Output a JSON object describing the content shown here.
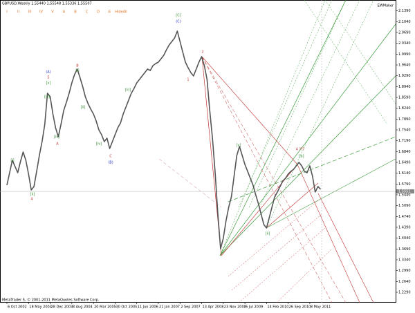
{
  "chart_data": {
    "type": "line",
    "title": "GBPUSD,Weekly  1.55440 1.55548 1.55336 1.55507",
    "brand": "EWMaker",
    "copyright": "MetaTrader 5, © 2001-2011 MetaQuotes Software Corp.",
    "toolbar": [
      "I",
      "II",
      "III",
      "IV",
      "V",
      "A",
      "B",
      "C",
      "D",
      "E",
      "HideAll"
    ],
    "categories": [
      "6 Oct 2002",
      null,
      null,
      null,
      null,
      null,
      null,
      null,
      "18 May 2003",
      null,
      null,
      null,
      null,
      null,
      null,
      null,
      "28 Dec 2003",
      null,
      null,
      null,
      null,
      null,
      null,
      null,
      "8 Aug 2004",
      null,
      null,
      null,
      null,
      null,
      null,
      null,
      "20 Mar 2005",
      null,
      null,
      null,
      null,
      null,
      null,
      null,
      "30 Oct 2005",
      null,
      null,
      null,
      null,
      null,
      null,
      null,
      "11 Jun 2006",
      null,
      null,
      null,
      null,
      null,
      null,
      null,
      "21 Jan 2007",
      null,
      null,
      null,
      null,
      null,
      null,
      null,
      "2 Sep 2007",
      null,
      null,
      null,
      null,
      null,
      null,
      null,
      "13 Apr 2008",
      null,
      null,
      null,
      null,
      null,
      null,
      null,
      "23 Nov 2008",
      null,
      null,
      null,
      null,
      null,
      null,
      null,
      "5 Jul 2009",
      null,
      null,
      null,
      null,
      null,
      null,
      null,
      "14 Feb 2010",
      null,
      null,
      null,
      null,
      null,
      null,
      null,
      "26 Sep 2010",
      null,
      null,
      null,
      null,
      null,
      null,
      null,
      "8 May 2011",
      null,
      null,
      null,
      null
    ],
    "series": [
      {
        "name": "GBPUSD",
        "color": "#555555",
        "values": [
          1.5753,
          1.6155,
          1.6557,
          1.6356,
          1.6155,
          1.6512,
          1.6825,
          1.6557,
          1.611,
          1.5597,
          1.5708,
          1.62,
          1.6714,
          1.716,
          1.7719,
          1.8724,
          1.8612,
          1.8054,
          1.7607,
          1.7317,
          1.7719,
          1.8166,
          1.8434,
          1.8724,
          1.9059,
          1.9327,
          1.9506,
          1.9238,
          1.8948,
          1.8612,
          1.8389,
          1.821,
          1.8054,
          1.7831,
          1.754,
          1.7384,
          1.716,
          1.7272,
          1.6937,
          1.716,
          1.7384,
          1.7607,
          1.7763,
          1.8054,
          1.8277,
          1.8501,
          1.8724,
          1.888,
          1.9059,
          1.9171,
          1.9283,
          1.9394,
          1.9506,
          1.9461,
          1.9618,
          1.9685,
          1.9729,
          1.9841,
          1.9953,
          2.0132,
          2.0288,
          2.04,
          2.0511,
          2.0735,
          2.04,
          2.0064,
          1.9729,
          1.9551,
          1.9394,
          1.9283,
          1.9506,
          1.9729,
          1.9908,
          1.9618,
          1.9171,
          1.8166,
          1.7272,
          1.6155,
          1.4815,
          1.3698,
          1.4033,
          1.4591,
          1.5038,
          1.5373,
          1.6043,
          1.6714,
          1.7004,
          1.6714,
          1.6423,
          1.62,
          1.5976,
          1.5753,
          1.544,
          1.515,
          1.4815,
          1.4479,
          1.4368,
          1.4703,
          1.5038,
          1.5373,
          1.553,
          1.5708,
          1.5887,
          1.5976,
          1.611,
          1.62,
          1.6267,
          1.6378,
          1.649,
          1.6378,
          1.62,
          1.6155,
          1.6378,
          1.6043,
          1.553,
          1.5708,
          1.5619
        ]
      }
    ],
    "ylim": [
      1.22,
      2.174
    ],
    "yticks": [
      {
        "value": 1.229,
        "label": "1.2290"
      },
      {
        "value": 1.264,
        "label": "1.2640"
      },
      {
        "value": 1.299,
        "label": "1.2990"
      },
      {
        "value": 1.334,
        "label": "1.3340"
      },
      {
        "value": 1.369,
        "label": "1.3690"
      },
      {
        "value": 1.404,
        "label": "1.4040"
      },
      {
        "value": 1.439,
        "label": "1.4390"
      },
      {
        "value": 1.474,
        "label": "1.4740"
      },
      {
        "value": 1.509,
        "label": "1.5090"
      },
      {
        "value": 1.544,
        "label": "1.5440"
      },
      {
        "value": 1.579,
        "label": "1.5790"
      },
      {
        "value": 1.614,
        "label": "1.6140"
      },
      {
        "value": 1.649,
        "label": "1.6490"
      },
      {
        "value": 1.684,
        "label": "1.6840"
      },
      {
        "value": 1.719,
        "label": "1.7190"
      },
      {
        "value": 1.754,
        "label": "1.7540"
      },
      {
        "value": 1.789,
        "label": "1.7890"
      },
      {
        "value": 1.824,
        "label": "1.8240"
      },
      {
        "value": 1.859,
        "label": "1.8590"
      },
      {
        "value": 1.894,
        "label": "1.8940"
      },
      {
        "value": 1.929,
        "label": "1.9290"
      },
      {
        "value": 1.964,
        "label": "1.9640"
      },
      {
        "value": 1.999,
        "label": "1.9990"
      },
      {
        "value": 2.034,
        "label": "2.0340"
      },
      {
        "value": 2.069,
        "label": "2.0690"
      },
      {
        "value": 2.104,
        "label": "2.1040"
      },
      {
        "value": 2.139,
        "label": "2.1390"
      }
    ],
    "current_price": {
      "value": 1.5551,
      "label": "1.5551"
    },
    "annotations": [
      "(A)",
      "5",
      "B",
      "A",
      "C",
      "(B)",
      "[C]",
      "(C)",
      "2",
      "1",
      "4 ???",
      "4",
      "[i]",
      "[ii]",
      "[iii]",
      "[iv]",
      "[v]",
      "[i]",
      "[ii]",
      "[iii]",
      "[iv]",
      "[v]",
      "[ii]",
      "[b]"
    ]
  }
}
